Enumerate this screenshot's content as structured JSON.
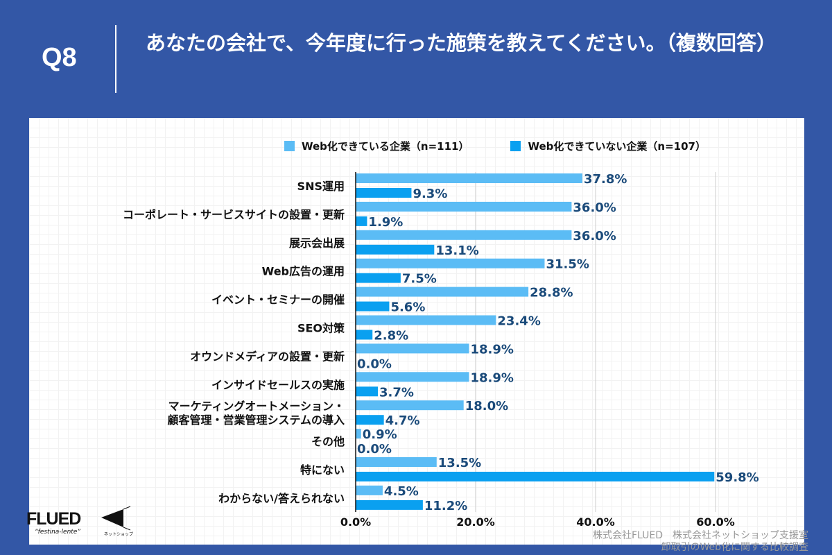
{
  "header": {
    "q": "Q8",
    "title": "あなたの会社で、今年度に行った施策を教えてください。（複数回答）"
  },
  "colors": {
    "background": "#3357a6",
    "series1": "#5bbcf5",
    "series2": "#0aa0f0",
    "value_label": "#1a4a7a"
  },
  "logos": {
    "flued": "FLUED",
    "flued_tagline": "“festina-lente”",
    "netshop": "ネットショップ支援室"
  },
  "source": {
    "line1": "株式会社FLUED　株式会社ネットショップ支援室",
    "line2": "卸取引のWeb化に関する比較調査"
  },
  "chart_data": {
    "type": "bar",
    "orientation": "horizontal",
    "categories": [
      "SNS運用",
      "コーポレート・サービスサイトの設置・更新",
      "展示会出展",
      "Web広告の運用",
      "イベント・セミナーの開催",
      "SEO対策",
      "オウンドメディアの設置・更新",
      "インサイドセールスの実施",
      "マーケティングオートメーション・\n顧客管理・営業管理システムの導入",
      "その他",
      "特にない",
      "わからない/答えられない"
    ],
    "series": [
      {
        "name": "Web化できている企業（n=111）",
        "values": [
          37.8,
          36.0,
          36.0,
          31.5,
          28.8,
          23.4,
          18.9,
          18.9,
          18.0,
          0.9,
          13.5,
          4.5
        ]
      },
      {
        "name": "Web化できていない企業（n=107）",
        "values": [
          9.3,
          1.9,
          13.1,
          7.5,
          5.6,
          2.8,
          0.0,
          3.7,
          4.7,
          0.0,
          59.8,
          11.2
        ]
      }
    ],
    "xlim": [
      0,
      60
    ],
    "xticks": [
      "0.0%",
      "20.0%",
      "40.0%",
      "60.0%"
    ],
    "grid": true,
    "legend": "top"
  }
}
